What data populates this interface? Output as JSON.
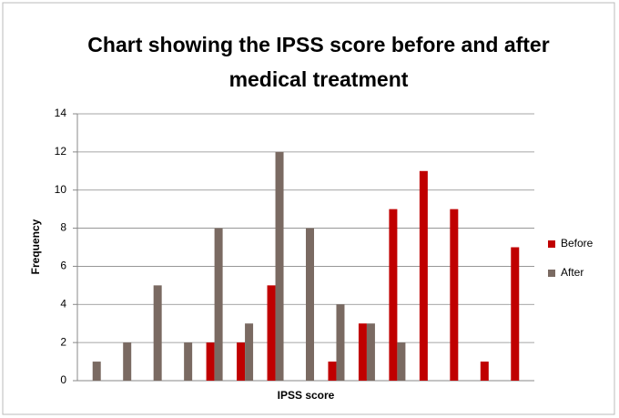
{
  "chart_data": {
    "type": "bar",
    "title": "Chart showing the IPSS score before and after medical treatment",
    "xlabel": "IPSS score",
    "ylabel": "Frequency",
    "categories": [
      null,
      null,
      null,
      null,
      null,
      null,
      null,
      null,
      null,
      null,
      null,
      null,
      null,
      null,
      null
    ],
    "series": [
      {
        "name": "Before",
        "color": "#c00000",
        "values": [
          null,
          null,
          null,
          null,
          2,
          2,
          5,
          null,
          1,
          3,
          9,
          11,
          9,
          1,
          7
        ]
      },
      {
        "name": "After",
        "color": "#7a6a62",
        "values": [
          1,
          2,
          5,
          2,
          8,
          3,
          12,
          8,
          4,
          3,
          2,
          null,
          null,
          null,
          null
        ]
      }
    ],
    "ylim": [
      0,
      14
    ],
    "yticks": [
      0,
      2,
      4,
      6,
      8,
      10,
      12,
      14
    ],
    "grid": true,
    "legend": "right"
  }
}
